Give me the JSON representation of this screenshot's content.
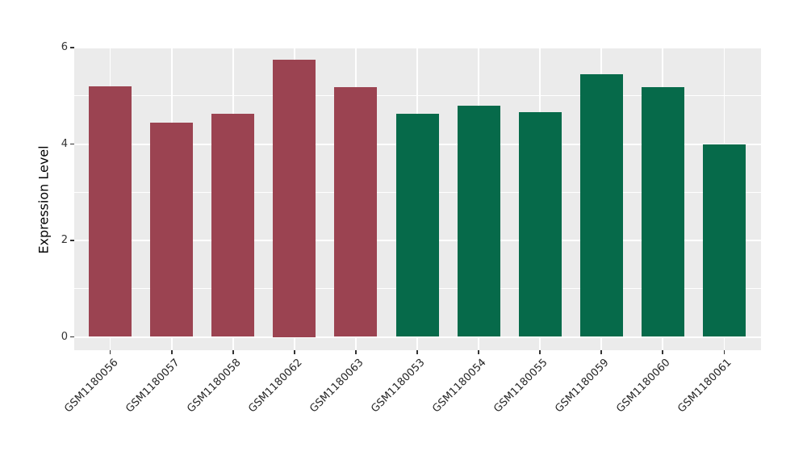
{
  "chart_data": {
    "type": "bar",
    "title": "",
    "xlabel": "",
    "ylabel": "Expression Level",
    "ylim": [
      0,
      6
    ],
    "yticks": [
      0,
      2,
      4,
      6
    ],
    "minor_gridlines": [
      1,
      3,
      5
    ],
    "grid": true,
    "legend": "none",
    "panel_background": "#EBEBEB",
    "gridline_color": "#FFFFFF",
    "palette": [
      "#9B4351",
      "#066A4A"
    ],
    "categories": [
      "GSM1180056",
      "GSM1180057",
      "GSM1180058",
      "GSM1180062",
      "GSM1180063",
      "GSM1180053",
      "GSM1180054",
      "GSM1180055",
      "GSM1180059",
      "GSM1180060",
      "GSM1180061"
    ],
    "values": [
      5.2,
      4.44,
      4.62,
      5.75,
      5.18,
      4.62,
      4.8,
      4.66,
      5.45,
      5.18,
      3.99
    ],
    "bars": [
      {
        "label": "GSM1180056",
        "value": 5.2,
        "color": "#9B4351"
      },
      {
        "label": "GSM1180057",
        "value": 4.44,
        "color": "#9B4351"
      },
      {
        "label": "GSM1180058",
        "value": 4.62,
        "color": "#9B4351"
      },
      {
        "label": "GSM1180062",
        "value": 5.75,
        "color": "#9B4351"
      },
      {
        "label": "GSM1180063",
        "value": 5.18,
        "color": "#9B4351"
      },
      {
        "label": "GSM1180053",
        "value": 4.62,
        "color": "#066A4A"
      },
      {
        "label": "GSM1180054",
        "value": 4.8,
        "color": "#066A4A"
      },
      {
        "label": "GSM1180055",
        "value": 4.66,
        "color": "#066A4A"
      },
      {
        "label": "GSM1180059",
        "value": 5.45,
        "color": "#066A4A"
      },
      {
        "label": "GSM1180060",
        "value": 5.18,
        "color": "#066A4A"
      },
      {
        "label": "GSM1180061",
        "value": 3.99,
        "color": "#066A4A"
      }
    ]
  }
}
